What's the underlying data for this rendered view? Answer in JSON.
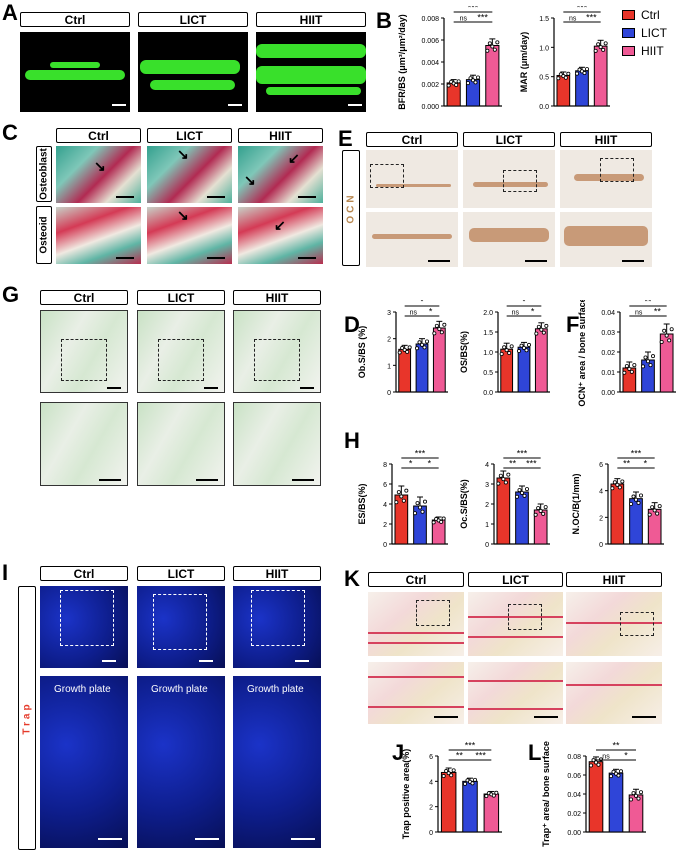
{
  "groups": [
    "Ctrl",
    "LICT",
    "HIIT"
  ],
  "colors": {
    "Ctrl": "#e8352a",
    "LICT": "#2f45d8",
    "HIIT": "#ef5a95"
  },
  "panels": {
    "A": "A",
    "B": "B",
    "C": "C",
    "D": "D",
    "E": "E",
    "F": "F",
    "G": "G",
    "H": "H",
    "I": "I",
    "J": "J",
    "K": "K",
    "L": "L"
  },
  "c_rows": [
    "Osteoblast",
    "Osteoid"
  ],
  "e_side": "OCN",
  "i_side": "Trap",
  "growth_plate": "Growth plate",
  "charts": [
    {
      "id": "bfr",
      "title": "BFR/BS (μm³/μm²/day)",
      "ylim": [
        0,
        0.008
      ],
      "ticks": [
        "0.000",
        "0.002",
        "0.004",
        "0.006",
        "0.008"
      ],
      "tv": [
        0,
        0.002,
        0.004,
        0.006,
        0.008
      ],
      "values": [
        0.0021,
        0.0024,
        0.0055
      ],
      "err": [
        0.0003,
        0.0004,
        0.0006
      ],
      "sig": [
        {
          "a": 0,
          "b": 2,
          "t": "***",
          "l": 0
        },
        {
          "a": 0,
          "b": 1,
          "t": "ns",
          "l": 1
        },
        {
          "a": 1,
          "b": 2,
          "t": "***",
          "l": 1
        }
      ]
    },
    {
      "id": "mar",
      "title": "MAR (μm/day)",
      "ylim": [
        0,
        1.5
      ],
      "ticks": [
        "0.0",
        "0.5",
        "1.0",
        "1.5"
      ],
      "tv": [
        0,
        0.5,
        1.0,
        1.5
      ],
      "values": [
        0.52,
        0.6,
        1.02
      ],
      "err": [
        0.06,
        0.06,
        0.1
      ],
      "sig": [
        {
          "a": 0,
          "b": 2,
          "t": "***",
          "l": 0
        },
        {
          "a": 0,
          "b": 1,
          "t": "ns",
          "l": 1
        },
        {
          "a": 1,
          "b": 2,
          "t": "***",
          "l": 1
        }
      ]
    },
    {
      "id": "obs",
      "title": "Ob.S/BS (%)",
      "ylim": [
        0,
        3
      ],
      "ticks": [
        "0",
        "1",
        "2",
        "3"
      ],
      "tv": [
        0,
        1,
        2,
        3
      ],
      "values": [
        1.6,
        1.8,
        2.4
      ],
      "err": [
        0.15,
        0.2,
        0.25
      ],
      "sig": [
        {
          "a": 0,
          "b": 2,
          "t": "*",
          "l": 0
        },
        {
          "a": 0,
          "b": 1,
          "t": "ns",
          "l": 1
        },
        {
          "a": 1,
          "b": 2,
          "t": "*",
          "l": 1
        }
      ]
    },
    {
      "id": "os",
      "title": "OS/BS(%)",
      "ylim": [
        0,
        2
      ],
      "ticks": [
        "0.0",
        "0.5",
        "1.0",
        "1.5",
        "2.0"
      ],
      "tv": [
        0,
        0.5,
        1,
        1.5,
        2
      ],
      "values": [
        1.07,
        1.12,
        1.58
      ],
      "err": [
        0.15,
        0.12,
        0.15
      ],
      "sig": [
        {
          "a": 0,
          "b": 2,
          "t": "*",
          "l": 0
        },
        {
          "a": 0,
          "b": 1,
          "t": "ns",
          "l": 1
        },
        {
          "a": 1,
          "b": 2,
          "t": "*",
          "l": 1
        }
      ]
    },
    {
      "id": "ocn",
      "title": "OCN⁺ area / bone surface",
      "ylim": [
        0,
        0.04
      ],
      "ticks": [
        "0.00",
        "0.01",
        "0.02",
        "0.03",
        "0.04"
      ],
      "tv": [
        0,
        0.01,
        0.02,
        0.03,
        0.04
      ],
      "values": [
        0.012,
        0.016,
        0.029
      ],
      "err": [
        0.003,
        0.004,
        0.005
      ],
      "sig": [
        {
          "a": 0,
          "b": 2,
          "t": "**",
          "l": 0
        },
        {
          "a": 0,
          "b": 1,
          "t": "ns",
          "l": 1
        },
        {
          "a": 1,
          "b": 2,
          "t": "**",
          "l": 1
        }
      ]
    },
    {
      "id": "es",
      "title": "ES/BS(%)",
      "ylim": [
        0,
        8
      ],
      "ticks": [
        "0",
        "2",
        "4",
        "6",
        "8"
      ],
      "tv": [
        0,
        2,
        4,
        6,
        8
      ],
      "values": [
        4.9,
        3.8,
        2.4
      ],
      "err": [
        0.9,
        0.9,
        0.3
      ],
      "sig": [
        {
          "a": 0,
          "b": 2,
          "t": "***",
          "l": 0
        },
        {
          "a": 0,
          "b": 1,
          "t": "*",
          "l": 1
        },
        {
          "a": 1,
          "b": 2,
          "t": "*",
          "l": 1
        }
      ]
    },
    {
      "id": "ocs",
      "title": "Oc.S/BS(%)",
      "ylim": [
        0,
        4
      ],
      "ticks": [
        "0",
        "1",
        "2",
        "3",
        "4"
      ],
      "tv": [
        0,
        1,
        2,
        3,
        4
      ],
      "values": [
        3.3,
        2.6,
        1.7
      ],
      "err": [
        0.35,
        0.3,
        0.3
      ],
      "sig": [
        {
          "a": 0,
          "b": 2,
          "t": "***",
          "l": 0
        },
        {
          "a": 0,
          "b": 1,
          "t": "**",
          "l": 1
        },
        {
          "a": 1,
          "b": 2,
          "t": "***",
          "l": 1
        }
      ]
    },
    {
      "id": "noc",
      "title": "N.OC/B(1/mm)",
      "ylim": [
        0,
        6
      ],
      "ticks": [
        "0",
        "2",
        "4",
        "6"
      ],
      "tv": [
        0,
        2,
        4,
        6
      ],
      "values": [
        4.5,
        3.4,
        2.6
      ],
      "err": [
        0.4,
        0.5,
        0.5
      ],
      "sig": [
        {
          "a": 0,
          "b": 2,
          "t": "***",
          "l": 0
        },
        {
          "a": 0,
          "b": 1,
          "t": "**",
          "l": 1
        },
        {
          "a": 1,
          "b": 2,
          "t": "*",
          "l": 1
        }
      ]
    },
    {
      "id": "trap",
      "title": "Trap positive area(%)",
      "ylim": [
        0,
        6
      ],
      "ticks": [
        "0",
        "2",
        "4",
        "6"
      ],
      "tv": [
        0,
        2,
        4,
        6
      ],
      "values": [
        4.7,
        4.0,
        3.0
      ],
      "err": [
        0.35,
        0.25,
        0.2
      ],
      "sig": [
        {
          "a": 0,
          "b": 2,
          "t": "***",
          "l": 0
        },
        {
          "a": 0,
          "b": 1,
          "t": "**",
          "l": 1
        },
        {
          "a": 1,
          "b": 2,
          "t": "***",
          "l": 1
        }
      ]
    },
    {
      "id": "trapbs",
      "title": "Trap⁺ area/ bone surface",
      "ylim": [
        0,
        0.08
      ],
      "ticks": [
        "0.00",
        "0.02",
        "0.04",
        "0.06",
        "0.08"
      ],
      "tv": [
        0,
        0.02,
        0.04,
        0.06,
        0.08
      ],
      "values": [
        0.074,
        0.062,
        0.039
      ],
      "err": [
        0.005,
        0.004,
        0.006
      ],
      "sig": [
        {
          "a": 0,
          "b": 2,
          "t": "**",
          "l": 0
        },
        {
          "a": 0,
          "b": 1,
          "t": "ns",
          "l": 1
        },
        {
          "a": 1,
          "b": 2,
          "t": "*",
          "l": 1
        }
      ]
    }
  ],
  "chart_data": [
    {
      "type": "bar",
      "categories": [
        "Ctrl",
        "LICT",
        "HIIT"
      ],
      "ylabel": "BFR/BS (μm³/μm²/day)",
      "values": [
        0.0021,
        0.0024,
        0.0055
      ],
      "ylim": [
        0,
        0.008
      ]
    },
    {
      "type": "bar",
      "categories": [
        "Ctrl",
        "LICT",
        "HIIT"
      ],
      "ylabel": "MAR (μm/day)",
      "values": [
        0.52,
        0.6,
        1.02
      ],
      "ylim": [
        0,
        1.5
      ]
    },
    {
      "type": "bar",
      "categories": [
        "Ctrl",
        "LICT",
        "HIIT"
      ],
      "ylabel": "Ob.S/BS (%)",
      "values": [
        1.6,
        1.8,
        2.4
      ],
      "ylim": [
        0,
        3
      ]
    },
    {
      "type": "bar",
      "categories": [
        "Ctrl",
        "LICT",
        "HIIT"
      ],
      "ylabel": "OS/BS(%)",
      "values": [
        1.07,
        1.12,
        1.58
      ],
      "ylim": [
        0,
        2
      ]
    },
    {
      "type": "bar",
      "categories": [
        "Ctrl",
        "LICT",
        "HIIT"
      ],
      "ylabel": "OCN⁺ area / bone surface",
      "values": [
        0.012,
        0.016,
        0.029
      ],
      "ylim": [
        0,
        0.04
      ]
    },
    {
      "type": "bar",
      "categories": [
        "Ctrl",
        "LICT",
        "HIIT"
      ],
      "ylabel": "ES/BS(%)",
      "values": [
        4.9,
        3.8,
        2.4
      ],
      "ylim": [
        0,
        8
      ]
    },
    {
      "type": "bar",
      "categories": [
        "Ctrl",
        "LICT",
        "HIIT"
      ],
      "ylabel": "Oc.S/BS(%)",
      "values": [
        3.3,
        2.6,
        1.7
      ],
      "ylim": [
        0,
        4
      ]
    },
    {
      "type": "bar",
      "categories": [
        "Ctrl",
        "LICT",
        "HIIT"
      ],
      "ylabel": "N.OC/B(1/mm)",
      "values": [
        4.5,
        3.4,
        2.6
      ],
      "ylim": [
        0,
        6
      ]
    },
    {
      "type": "bar",
      "categories": [
        "Ctrl",
        "LICT",
        "HIIT"
      ],
      "ylabel": "Trap positive area(%)",
      "values": [
        4.7,
        4.0,
        3.0
      ],
      "ylim": [
        0,
        6
      ]
    },
    {
      "type": "bar",
      "categories": [
        "Ctrl",
        "LICT",
        "HIIT"
      ],
      "ylabel": "Trap⁺ area/ bone surface",
      "values": [
        0.074,
        0.062,
        0.039
      ],
      "ylim": [
        0,
        0.08
      ]
    }
  ]
}
